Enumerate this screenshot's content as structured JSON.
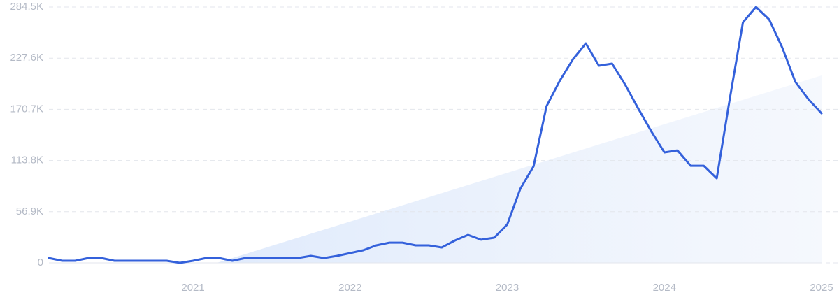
{
  "chart_data": {
    "type": "line",
    "x": [
      2020.083,
      2020.167,
      2020.25,
      2020.333,
      2020.417,
      2020.5,
      2020.583,
      2020.667,
      2020.75,
      2020.833,
      2020.917,
      2021,
      2021.083,
      2021.167,
      2021.25,
      2021.333,
      2021.417,
      2021.5,
      2021.583,
      2021.667,
      2021.75,
      2021.833,
      2021.917,
      2022,
      2022.083,
      2022.167,
      2022.25,
      2022.333,
      2022.417,
      2022.5,
      2022.583,
      2022.667,
      2022.75,
      2022.833,
      2022.917,
      2023,
      2023.083,
      2023.167,
      2023.25,
      2023.333,
      2023.417,
      2023.5,
      2023.583,
      2023.667,
      2023.75,
      2023.833,
      2023.917,
      2024,
      2024.083,
      2024.167,
      2024.25,
      2024.333,
      2024.417,
      2024.5,
      2024.583,
      2024.667,
      2024.75,
      2024.833,
      2024.917,
      2025
    ],
    "series": [
      {
        "color": "#3461db",
        "values": [
          5400,
          2300,
          2300,
          5400,
          5400,
          2300,
          2300,
          2300,
          2300,
          2300,
          0,
          2300,
          5400,
          5400,
          2300,
          5400,
          5400,
          5400,
          5400,
          5400,
          7800,
          5400,
          7800,
          10900,
          14000,
          19400,
          22500,
          22500,
          19400,
          19400,
          17100,
          24900,
          31100,
          25700,
          28000,
          42700,
          82400,
          107300,
          174200,
          202100,
          226200,
          244000,
          219200,
          221500,
          198200,
          171800,
          146100,
          122800,
          125100,
          108000,
          108000,
          94000,
          183400,
          267400,
          284500,
          270500,
          239400,
          201300,
          181900,
          166300
        ]
      }
    ],
    "xlim": [
      2020.083,
      2025
    ],
    "xticks": [
      2021,
      2022,
      2023,
      2024,
      2025
    ],
    "ylim": [
      0,
      284500
    ],
    "yticks": [
      0,
      {
        "value": 56900,
        "label": "56.9K"
      },
      {
        "value": 113800,
        "label": "113.8K"
      },
      {
        "value": 170700,
        "label": "170.7K"
      },
      {
        "value": 227600,
        "label": "227.6K"
      },
      {
        "value": 284500,
        "label": "284.5K"
      }
    ],
    "grid": true
  }
}
